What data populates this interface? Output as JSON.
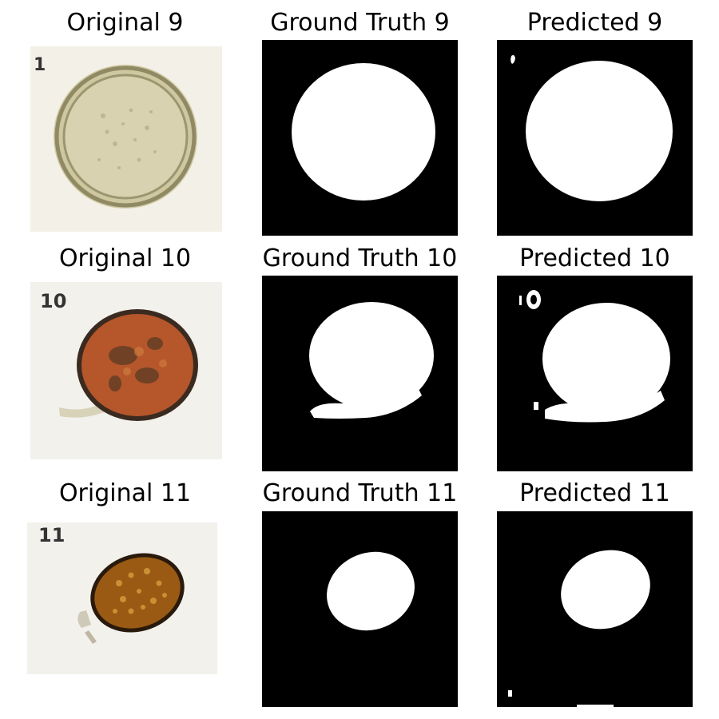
{
  "figure": {
    "rows": [
      {
        "original_title": "Original 9",
        "ground_truth_title": "Ground Truth 9",
        "predicted_title": "Predicted 9",
        "original_label": "1"
      },
      {
        "original_title": "Original 10",
        "ground_truth_title": "Ground Truth 10",
        "predicted_title": "Predicted 10",
        "original_label": "10"
      },
      {
        "original_title": "Original 11",
        "ground_truth_title": "Ground Truth 11",
        "predicted_title": "Predicted 11",
        "original_label": "11"
      }
    ]
  },
  "colors": {
    "mask_background": "#000000",
    "mask_foreground": "#ffffff",
    "egg9_fill": "#d9d2b0",
    "egg9_shell": "#8f8a63",
    "egg10_fill": "#b5562b",
    "egg10_shell": "#3b2a1f",
    "egg11_fill": "#9a5a13",
    "egg11_shell": "#2a1a0c",
    "paper": "#f3f0e8"
  }
}
